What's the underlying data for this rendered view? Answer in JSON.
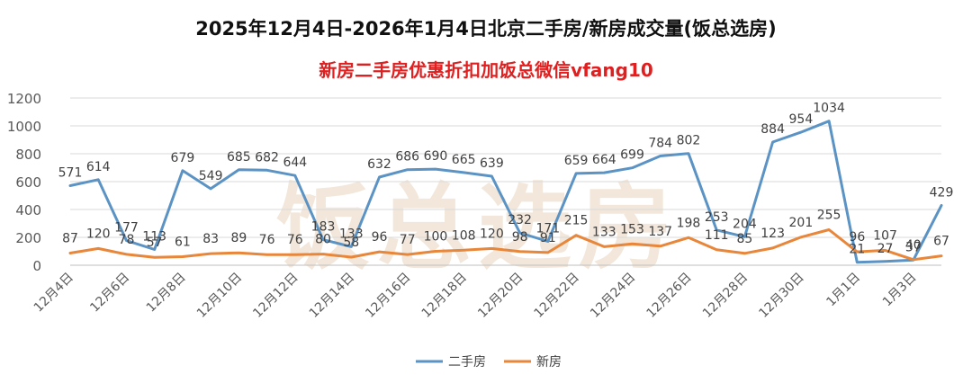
{
  "title": "2025年12月4日-2026年1月4日北京二手房/新房成交量(饭总选房)",
  "subtitle": "新房二手房优惠折扣加饭总微信vfang10",
  "watermark": "饭总选房",
  "colors": {
    "title": "#111111",
    "subtitle": "#e02020",
    "series1": "#5b93c4",
    "series2": "#e8863a",
    "axis_text": "#595959",
    "grid": "#d9d9d9"
  },
  "chart_data": {
    "type": "line",
    "title": "2025年12月4日-2026年1月4日北京二手房/新房成交量(饭总选房)",
    "subtitle": "新房二手房优惠折扣加饭总微信vfang10",
    "categories": [
      "12月4日",
      "12月5日",
      "12月6日",
      "12月7日",
      "12月8日",
      "12月9日",
      "12月10日",
      "12月11日",
      "12月12日",
      "12月13日",
      "12月14日",
      "12月15日",
      "12月16日",
      "12月17日",
      "12月18日",
      "12月19日",
      "12月20日",
      "12月21日",
      "12月22日",
      "12月23日",
      "12月24日",
      "12月25日",
      "12月26日",
      "12月27日",
      "12月28日",
      "12月29日",
      "12月30日",
      "12月31日",
      "1月1日",
      "1月2日",
      "1月3日",
      "1月4日"
    ],
    "tick_labels": [
      "12月4日",
      "12月6日",
      "12月8日",
      "12月10日",
      "12月12日",
      "12月14日",
      "12月16日",
      "12月18日",
      "12月20日",
      "12月22日",
      "12月24日",
      "12月26日",
      "12月28日",
      "12月30日",
      "1月1日",
      "1月3日"
    ],
    "series": [
      {
        "name": "二手房",
        "color": "#5b93c4",
        "values": [
          571,
          614,
          177,
          113,
          679,
          549,
          685,
          682,
          644,
          183,
          133,
          632,
          686,
          690,
          665,
          639,
          232,
          171,
          659,
          664,
          699,
          784,
          802,
          253,
          204,
          884,
          954,
          1034,
          21,
          27,
          37,
          429
        ]
      },
      {
        "name": "新房",
        "color": "#e8863a",
        "values": [
          87,
          120,
          78,
          57,
          61,
          83,
          89,
          76,
          76,
          80,
          58,
          96,
          77,
          100,
          108,
          120,
          98,
          91,
          215,
          133,
          153,
          137,
          198,
          111,
          85,
          123,
          201,
          255,
          96,
          107,
          40,
          67
        ]
      }
    ],
    "ylim": [
      0,
      1200
    ],
    "yticks": [
      0,
      200,
      400,
      600,
      800,
      1000,
      1200
    ],
    "grid": true,
    "legend": "bottom"
  }
}
